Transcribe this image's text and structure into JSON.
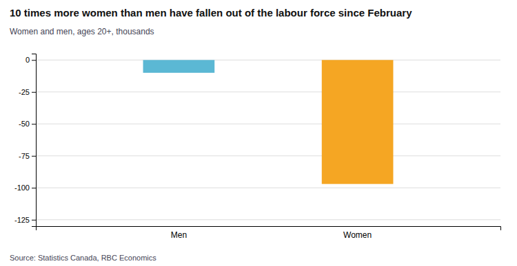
{
  "chart_data": {
    "type": "bar",
    "title": "10 times more women than men have fallen out of the labour force since February",
    "subtitle": "Women and men, ages 20+, thousands",
    "source": "Source: Statistics Canada, RBC Economics",
    "categories": [
      "Men",
      "Women"
    ],
    "values": [
      -10,
      -97
    ],
    "colors": [
      "#5bb8d4",
      "#f5a623"
    ],
    "ylim": [
      -130,
      5
    ],
    "yticks": [
      0,
      -25,
      -50,
      -75,
      -100,
      -125
    ],
    "grid": true
  }
}
